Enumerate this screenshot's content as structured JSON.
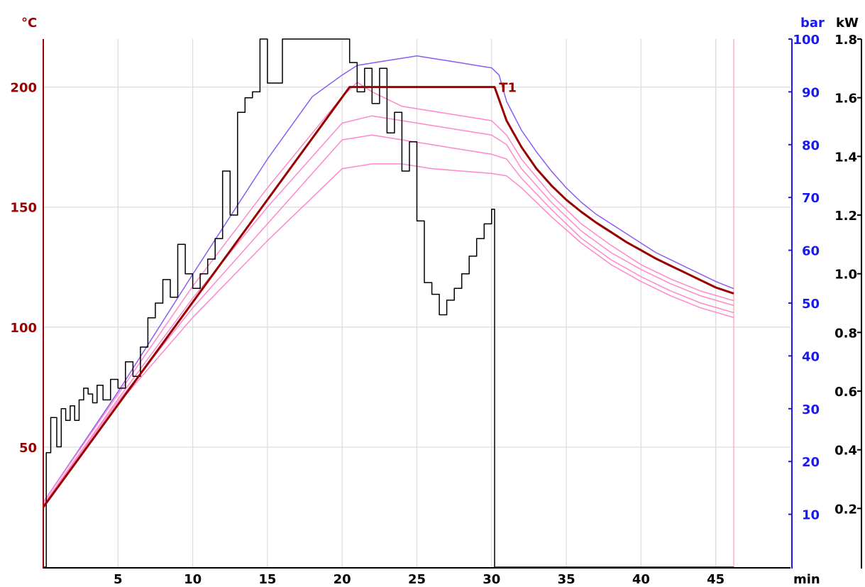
{
  "chart_data": {
    "type": "line",
    "x_axis": {
      "unit": "min",
      "range": [
        0,
        50
      ],
      "ticks": [
        5,
        10,
        15,
        20,
        25,
        30,
        35,
        40,
        45
      ],
      "color": "#000000"
    },
    "y_axes": [
      {
        "id": "temp",
        "unit": "°C",
        "range": [
          0,
          220
        ],
        "ticks": [
          50,
          100,
          150,
          200
        ],
        "color": "#990000",
        "side": "left"
      },
      {
        "id": "pressure",
        "unit": "bar",
        "range": [
          0,
          100
        ],
        "ticks": [
          10,
          20,
          30,
          40,
          50,
          60,
          70,
          80,
          90,
          100
        ],
        "color": "#1a1aee",
        "side": "right"
      },
      {
        "id": "power",
        "unit": "kW",
        "range": [
          0,
          1.8
        ],
        "ticks": [
          "0.2",
          "0.4",
          "0.6",
          "0.8",
          "1.0",
          "1.2",
          "1.4",
          "1.6",
          "1.8"
        ],
        "color": "#000000",
        "side": "right"
      }
    ],
    "grid": true,
    "end_marker_x": 46.2,
    "annotations": [
      {
        "text": "T1",
        "x": 30.4,
        "y": 200,
        "axis": "temp"
      }
    ],
    "series": [
      {
        "axis": "temp",
        "color": "#990000",
        "width": 3,
        "x": [
          0,
          20.5,
          30.2,
          31,
          32,
          33,
          34,
          35,
          36,
          37,
          38,
          39,
          40,
          41,
          42,
          43,
          44,
          45,
          46.2
        ],
        "y": [
          25,
          200,
          200,
          186,
          175,
          166,
          159,
          153,
          148,
          143.5,
          139.5,
          135.5,
          132,
          128.5,
          125.5,
          122.5,
          119.5,
          116.5,
          114
        ]
      },
      {
        "axis": "temp",
        "color": "#8c5cf0",
        "width": 1.5,
        "x": [
          0,
          5,
          10,
          15,
          18,
          20,
          21,
          22,
          23,
          24,
          25,
          26,
          27,
          28,
          29,
          30,
          30.5,
          31,
          32,
          33,
          34,
          35,
          36,
          37,
          38,
          39,
          40,
          41,
          42,
          43,
          44,
          45,
          46.2
        ],
        "y": [
          27,
          73,
          122,
          170,
          196,
          205,
          209,
          210,
          211,
          212,
          213,
          212,
          211,
          210,
          209,
          208,
          205,
          194,
          182,
          173,
          165,
          158,
          152,
          147,
          143,
          139,
          135,
          131,
          128,
          125,
          122,
          119,
          116
        ]
      },
      {
        "axis": "temp",
        "color": "#ff88cc",
        "width": 1.5,
        "x": [
          0,
          5,
          10,
          15,
          20,
          21,
          22,
          24,
          26,
          28,
          30,
          31,
          32,
          34,
          36,
          38,
          40,
          42,
          44,
          46.2
        ],
        "y": [
          27,
          72,
          117,
          158,
          196,
          202,
          198,
          192,
          190,
          188,
          186,
          180,
          170,
          155,
          143,
          134,
          126,
          120,
          115,
          111
        ]
      },
      {
        "axis": "temp",
        "color": "#ff88cc",
        "width": 1.5,
        "x": [
          0,
          5,
          10,
          15,
          20,
          22,
          24,
          26,
          28,
          30,
          31,
          32,
          34,
          36,
          38,
          40,
          42,
          44,
          46.2
        ],
        "y": [
          26,
          70,
          112,
          150,
          185,
          188,
          186,
          184,
          182,
          180,
          176,
          166,
          152,
          140,
          131,
          124,
          118,
          113,
          109
        ]
      },
      {
        "axis": "temp",
        "color": "#ff88cc",
        "width": 1.5,
        "x": [
          0,
          5,
          10,
          15,
          20,
          22,
          24,
          26,
          28,
          30,
          31,
          32,
          34,
          36,
          38,
          40,
          42,
          44,
          46.2
        ],
        "y": [
          26,
          69,
          108,
          143,
          178,
          180,
          178,
          176,
          174,
          172,
          170,
          162,
          149,
          137,
          128,
          121,
          115,
          110,
          106
        ]
      },
      {
        "axis": "temp",
        "color": "#ff88cc",
        "width": 1.5,
        "x": [
          0,
          5,
          10,
          15,
          20,
          22,
          24,
          26,
          28,
          30,
          31,
          32,
          34,
          36,
          38,
          40,
          42,
          44,
          46.2
        ],
        "y": [
          25,
          68,
          104,
          136,
          166,
          168,
          168,
          166,
          165,
          164,
          163,
          158,
          146,
          135,
          126,
          119,
          113,
          108,
          104
        ]
      },
      {
        "axis": "power",
        "color": "#000000",
        "width": 1.5,
        "step": true,
        "x": [
          0,
          0.2,
          0.5,
          0.9,
          1.2,
          1.5,
          1.8,
          2.1,
          2.4,
          2.7,
          3.0,
          3.3,
          3.6,
          4.0,
          4.5,
          5.0,
          5.5,
          6.0,
          6.5,
          7.0,
          7.5,
          8.0,
          8.5,
          9.0,
          9.5,
          10.0,
          10.5,
          11.0,
          11.5,
          12.0,
          12.5,
          13.0,
          13.5,
          14.0,
          14.5,
          15.0,
          16.0,
          17.0,
          18.0,
          19.0,
          20.0,
          20.5,
          21.0,
          21.5,
          22.0,
          22.5,
          23.0,
          23.5,
          24.0,
          24.5,
          25.0,
          25.5,
          26.0,
          26.5,
          27.0,
          27.5,
          28.0,
          28.5,
          29.0,
          29.5,
          30.0,
          30.2,
          46.2
        ],
        "y": [
          0.0,
          0.39,
          0.51,
          0.41,
          0.54,
          0.5,
          0.55,
          0.5,
          0.57,
          0.61,
          0.59,
          0.56,
          0.62,
          0.57,
          0.64,
          0.61,
          0.7,
          0.65,
          0.75,
          0.85,
          0.9,
          0.98,
          0.92,
          1.1,
          1.0,
          0.95,
          1.0,
          1.05,
          1.12,
          1.35,
          1.2,
          1.55,
          1.6,
          1.62,
          1.8,
          1.65,
          1.8,
          1.8,
          1.8,
          1.8,
          1.8,
          1.72,
          1.62,
          1.7,
          1.58,
          1.7,
          1.48,
          1.55,
          1.35,
          1.45,
          1.18,
          0.97,
          0.93,
          0.86,
          0.91,
          0.95,
          1.0,
          1.06,
          1.12,
          1.17,
          1.22,
          0.0,
          0.0
        ]
      }
    ]
  }
}
